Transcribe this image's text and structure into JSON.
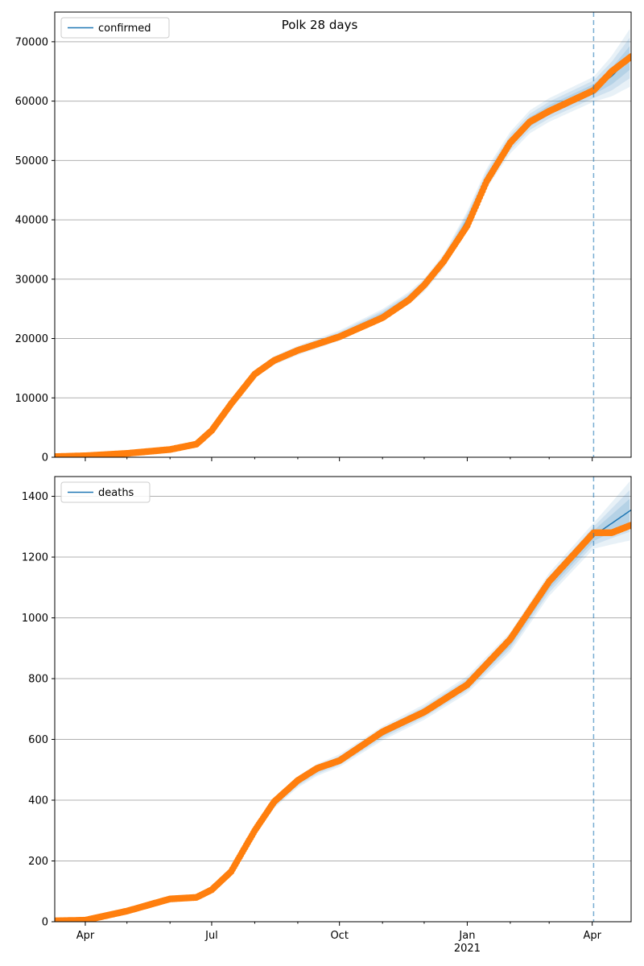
{
  "figure_title": "Polk 28 days",
  "x_axis": {
    "start": "2020-03-10",
    "end": "2021-04-29",
    "major_ticks": [
      {
        "date": "2020-04-01",
        "label": "Apr",
        "sub": ""
      },
      {
        "date": "2020-07-01",
        "label": "Jul",
        "sub": ""
      },
      {
        "date": "2020-10-01",
        "label": "Oct",
        "sub": ""
      },
      {
        "date": "2021-01-01",
        "label": "Jan",
        "sub": "2021"
      },
      {
        "date": "2021-04-01",
        "label": "Apr",
        "sub": ""
      }
    ],
    "minor_ticks": [
      "2020-05-01",
      "2020-06-01",
      "2020-08-01",
      "2020-09-01",
      "2020-11-01",
      "2020-12-01",
      "2021-02-01",
      "2021-03-01"
    ]
  },
  "chart_data": [
    {
      "type": "line",
      "series_name": "confirmed",
      "legend_position": "upper-left",
      "grid": "y",
      "ylim": [
        0,
        75000
      ],
      "yticks": [
        0,
        10000,
        20000,
        30000,
        40000,
        50000,
        60000,
        70000
      ],
      "forecast_start": "2021-04-02",
      "model": [
        [
          "2020-03-10",
          120
        ],
        [
          "2020-04-01",
          250
        ],
        [
          "2020-05-01",
          650
        ],
        [
          "2020-06-01",
          1300
        ],
        [
          "2020-06-20",
          2200
        ],
        [
          "2020-07-01",
          4500
        ],
        [
          "2020-07-15",
          9000
        ],
        [
          "2020-08-01",
          14000
        ],
        [
          "2020-08-15",
          16300
        ],
        [
          "2020-09-01",
          18000
        ],
        [
          "2020-10-01",
          20500
        ],
        [
          "2020-11-01",
          24000
        ],
        [
          "2020-11-20",
          26800
        ],
        [
          "2020-12-01",
          29000
        ],
        [
          "2020-12-15",
          33000
        ],
        [
          "2021-01-01",
          40000
        ],
        [
          "2021-01-15",
          47000
        ],
        [
          "2021-02-01",
          53000
        ],
        [
          "2021-02-15",
          56500
        ],
        [
          "2021-03-01",
          58500
        ],
        [
          "2021-04-02",
          62000
        ],
        [
          "2021-04-15",
          64200
        ],
        [
          "2021-04-29",
          67500
        ]
      ],
      "observed": [
        [
          "2020-03-10",
          100
        ],
        [
          "2020-04-01",
          250
        ],
        [
          "2020-05-01",
          650
        ],
        [
          "2020-06-01",
          1300
        ],
        [
          "2020-06-20",
          2200
        ],
        [
          "2020-07-01",
          4500
        ],
        [
          "2020-07-15",
          9000
        ],
        [
          "2020-08-01",
          14000
        ],
        [
          "2020-08-15",
          16300
        ],
        [
          "2020-09-01",
          18000
        ],
        [
          "2020-10-01",
          20300
        ],
        [
          "2020-11-01",
          23500
        ],
        [
          "2020-11-20",
          26500
        ],
        [
          "2020-12-01",
          29000
        ],
        [
          "2020-12-15",
          33000
        ],
        [
          "2021-01-01",
          39000
        ],
        [
          "2021-01-15",
          46500
        ],
        [
          "2021-02-01",
          53000
        ],
        [
          "2021-02-15",
          56500
        ],
        [
          "2021-03-01",
          58300
        ],
        [
          "2021-04-02",
          61800
        ],
        [
          "2021-04-15",
          65000
        ],
        [
          "2021-04-29",
          67500
        ]
      ]
    },
    {
      "type": "line",
      "series_name": "deaths",
      "legend_position": "upper-left",
      "grid": "y",
      "ylim": [
        0,
        1465
      ],
      "yticks": [
        0,
        200,
        400,
        600,
        800,
        1000,
        1200,
        1400
      ],
      "forecast_start": "2021-04-02",
      "model": [
        [
          "2020-03-10",
          3
        ],
        [
          "2020-04-01",
          5
        ],
        [
          "2020-05-01",
          35
        ],
        [
          "2020-06-01",
          70
        ],
        [
          "2020-06-20",
          80
        ],
        [
          "2020-07-01",
          110
        ],
        [
          "2020-07-15",
          170
        ],
        [
          "2020-08-01",
          300
        ],
        [
          "2020-08-15",
          390
        ],
        [
          "2020-09-01",
          460
        ],
        [
          "2020-09-15",
          500
        ],
        [
          "2020-10-01",
          530
        ],
        [
          "2020-11-01",
          620
        ],
        [
          "2020-12-01",
          690
        ],
        [
          "2021-01-01",
          780
        ],
        [
          "2021-02-01",
          920
        ],
        [
          "2021-03-01",
          1110
        ],
        [
          "2021-04-02",
          1270
        ],
        [
          "2021-04-29",
          1355
        ]
      ],
      "observed": [
        [
          "2020-03-10",
          3
        ],
        [
          "2020-04-01",
          5
        ],
        [
          "2020-05-01",
          35
        ],
        [
          "2020-06-01",
          75
        ],
        [
          "2020-06-20",
          80
        ],
        [
          "2020-07-01",
          105
        ],
        [
          "2020-07-15",
          165
        ],
        [
          "2020-08-01",
          300
        ],
        [
          "2020-08-15",
          395
        ],
        [
          "2020-09-01",
          465
        ],
        [
          "2020-09-15",
          505
        ],
        [
          "2020-10-01",
          530
        ],
        [
          "2020-11-01",
          625
        ],
        [
          "2020-12-01",
          690
        ],
        [
          "2021-01-01",
          780
        ],
        [
          "2021-02-01",
          930
        ],
        [
          "2021-03-01",
          1120
        ],
        [
          "2021-04-02",
          1280
        ],
        [
          "2021-04-15",
          1280
        ],
        [
          "2021-04-29",
          1305
        ]
      ]
    }
  ],
  "colors": {
    "line": "#1f77b4",
    "points": "#ff7f0e",
    "band": "#1f77b4",
    "grid": "#b0b0b0",
    "forecast_marker": "#1f77b4"
  }
}
